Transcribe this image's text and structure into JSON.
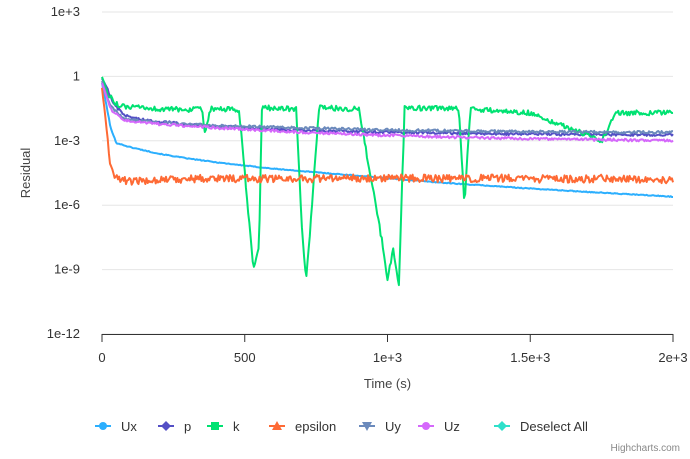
{
  "chart_data": {
    "type": "line",
    "title": "",
    "xlabel": "Time (s)",
    "ylabel": "Residual",
    "y_scale": "log",
    "xlim": [
      0,
      2000
    ],
    "ylim": [
      1e-12,
      1000
    ],
    "x_ticks": [
      {
        "value": 0,
        "label": "0"
      },
      {
        "value": 500,
        "label": "500"
      },
      {
        "value": 1000,
        "label": "1e+3"
      },
      {
        "value": 1500,
        "label": "1.5e+3"
      },
      {
        "value": 2000,
        "label": "2e+3"
      }
    ],
    "y_ticks": [
      {
        "value": 1000,
        "label": "1e+3"
      },
      {
        "value": 1,
        "label": "1"
      },
      {
        "value": 0.001,
        "label": "1e-3"
      },
      {
        "value": 1e-06,
        "label": "1e-6"
      },
      {
        "value": 1e-09,
        "label": "1e-9"
      },
      {
        "value": 1e-12,
        "label": "1e-12"
      }
    ],
    "grid": true,
    "legend_position": "bottom",
    "series": [
      {
        "name": "Ux",
        "color": "#2caffe",
        "marker": "circle",
        "points": [
          [
            0,
            0.5
          ],
          [
            15,
            0.05
          ],
          [
            30,
            0.004
          ],
          [
            50,
            0.0008
          ],
          [
            100,
            0.0005
          ],
          [
            200,
            0.00025
          ],
          [
            300,
            0.00015
          ],
          [
            400,
            0.0001
          ],
          [
            500,
            7e-05
          ],
          [
            600,
            5e-05
          ],
          [
            800,
            3e-05
          ],
          [
            1000,
            1.8e-05
          ],
          [
            1200,
            1.1e-05
          ],
          [
            1500,
            6e-06
          ],
          [
            1800,
            3.5e-06
          ],
          [
            2000,
            2.5e-06
          ]
        ]
      },
      {
        "name": "p",
        "color": "#544fc5",
        "marker": "diamond",
        "points": [
          [
            0,
            0.8
          ],
          [
            20,
            0.25
          ],
          [
            40,
            0.05
          ],
          [
            80,
            0.015
          ],
          [
            150,
            0.009
          ],
          [
            300,
            0.006
          ],
          [
            500,
            0.004
          ],
          [
            700,
            0.003
          ],
          [
            1000,
            0.0025
          ],
          [
            1300,
            0.0022
          ],
          [
            1600,
            0.002
          ],
          [
            2000,
            0.0019
          ]
        ]
      },
      {
        "name": "k",
        "color": "#00e272",
        "marker": "square",
        "points": [
          [
            0,
            1
          ],
          [
            20,
            0.15
          ],
          [
            60,
            0.04
          ],
          [
            120,
            0.035
          ],
          [
            200,
            0.03
          ],
          [
            350,
            0.028
          ],
          [
            360,
            0.002
          ],
          [
            380,
            0.03
          ],
          [
            480,
            0.028
          ],
          [
            510,
            1e-06
          ],
          [
            530,
            1e-09
          ],
          [
            550,
            1e-08
          ],
          [
            560,
            0.035
          ],
          [
            680,
            0.03
          ],
          [
            700,
            1e-07
          ],
          [
            715,
            3e-10
          ],
          [
            730,
            1e-07
          ],
          [
            760,
            0.035
          ],
          [
            900,
            0.03
          ],
          [
            985,
            1e-08
          ],
          [
            1000,
            3e-10
          ],
          [
            1020,
            1e-08
          ],
          [
            1040,
            2e-10
          ],
          [
            1060,
            0.035
          ],
          [
            1250,
            0.03
          ],
          [
            1270,
            1e-06
          ],
          [
            1290,
            0.03
          ],
          [
            1500,
            0.02
          ],
          [
            1750,
            0.001
          ],
          [
            1800,
            0.02
          ],
          [
            2000,
            0.02
          ]
        ]
      },
      {
        "name": "epsilon",
        "color": "#fe6a35",
        "marker": "triangle",
        "points": [
          [
            0,
            0.3
          ],
          [
            15,
            0.005
          ],
          [
            30,
            5e-05
          ],
          [
            50,
            2e-05
          ],
          [
            100,
            1.2e-05
          ],
          [
            200,
            1.6e-05
          ],
          [
            400,
            1.8e-05
          ],
          [
            600,
            1.7e-05
          ],
          [
            800,
            1.8e-05
          ],
          [
            1000,
            1.9e-05
          ],
          [
            1200,
            1.7e-05
          ],
          [
            1400,
            1.8e-05
          ],
          [
            1600,
            1.6e-05
          ],
          [
            1800,
            1.8e-05
          ],
          [
            2000,
            1.5e-05
          ]
        ]
      },
      {
        "name": "Uy",
        "color": "#6b8abc",
        "marker": "triangle-down",
        "points": [
          [
            0,
            0.6
          ],
          [
            30,
            0.04
          ],
          [
            80,
            0.01
          ],
          [
            200,
            0.007
          ],
          [
            400,
            0.005
          ],
          [
            700,
            0.004
          ],
          [
            1000,
            0.0032
          ],
          [
            1300,
            0.0028
          ],
          [
            1600,
            0.0026
          ],
          [
            2000,
            0.0025
          ]
        ]
      },
      {
        "name": "Uz",
        "color": "#d568fb",
        "marker": "circle",
        "points": [
          [
            0,
            0.5
          ],
          [
            30,
            0.03
          ],
          [
            80,
            0.009
          ],
          [
            200,
            0.006
          ],
          [
            400,
            0.004
          ],
          [
            700,
            0.0025
          ],
          [
            1000,
            0.0018
          ],
          [
            1300,
            0.0014
          ],
          [
            1600,
            0.0012
          ],
          [
            2000,
            0.001
          ]
        ]
      },
      {
        "name": "Deselect All",
        "color": "#2ee0ca",
        "marker": "diamond",
        "points": []
      }
    ]
  },
  "credits": "Highcharts.com"
}
